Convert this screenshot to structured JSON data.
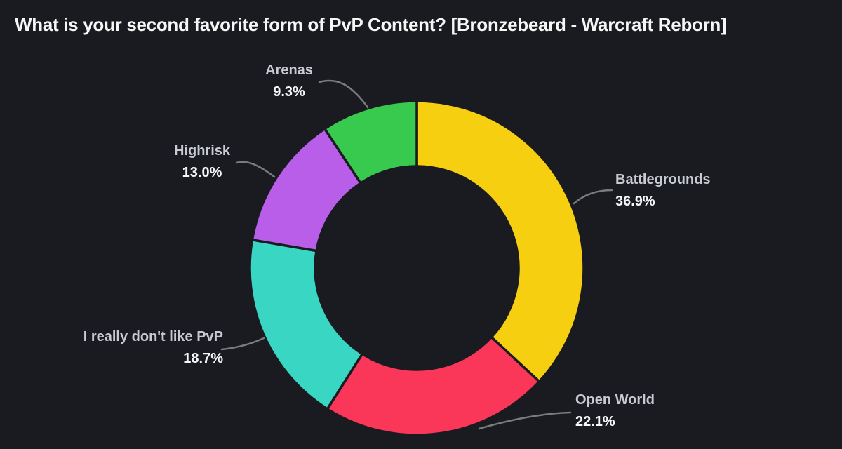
{
  "chart_data": {
    "type": "pie",
    "donut": true,
    "title": "What is your second favorite form of PvP Content? [Bronzebeard - Warcraft Reborn]",
    "start_angle_deg": 0,
    "direction": "clockwise",
    "slices": [
      {
        "label": "Battlegrounds",
        "value": 36.9,
        "pct_label": "36.9%",
        "color": "#F6CF11"
      },
      {
        "label": "Open World",
        "value": 22.1,
        "pct_label": "22.1%",
        "color": "#FA3659"
      },
      {
        "label": "I really don't like PvP",
        "value": 18.7,
        "pct_label": "18.7%",
        "color": "#39D6C3"
      },
      {
        "label": "Highrisk",
        "value": 13.0,
        "pct_label": "13.0%",
        "color": "#B85EE9"
      },
      {
        "label": "Arenas",
        "value": 9.3,
        "pct_label": "9.3%",
        "color": "#38C94F"
      }
    ],
    "colors": {
      "background": "#191B20",
      "slice_gap_stroke": "#191B20",
      "leader_line": "#8C8C8C",
      "title_text": "#F6F6F6",
      "label_text": "#C7CBD1",
      "percent_text": "#F4F5F7"
    },
    "legend_position": "none",
    "labels_style": "outside-callouts-with-leader-lines"
  }
}
